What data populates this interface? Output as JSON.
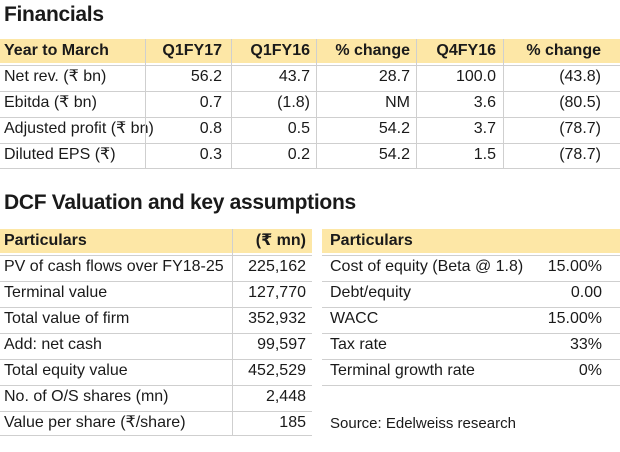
{
  "financials": {
    "title": "Financials",
    "headers": [
      "Year to March",
      "Q1FY17",
      "Q1FY16",
      "% change",
      "Q4FY16",
      "% change"
    ],
    "rows": [
      [
        "Net rev. (₹ bn)",
        "56.2",
        "43.7",
        "28.7",
        "100.0",
        "(43.8)"
      ],
      [
        "Ebitda (₹ bn)",
        "0.7",
        "(1.8)",
        "NM",
        "3.6",
        "(80.5)"
      ],
      [
        "Adjusted profit (₹ bn)",
        "0.8",
        "0.5",
        "54.2",
        "3.7",
        "(78.7)"
      ],
      [
        "Diluted EPS (₹)",
        "0.3",
        "0.2",
        "54.2",
        "1.5",
        "(78.7)"
      ]
    ]
  },
  "dcf": {
    "title": "DCF Valuation and key assumptions",
    "left_headers": [
      "Particulars",
      "(₹ mn)"
    ],
    "left_rows": [
      [
        "PV of cash flows over FY18-25",
        "225,162"
      ],
      [
        "Terminal value",
        "127,770"
      ],
      [
        "Total value of firm",
        "352,932"
      ],
      [
        "Add: net cash",
        "99,597"
      ],
      [
        "Total equity value",
        "452,529"
      ],
      [
        "No. of O/S shares (mn)",
        "2,448"
      ],
      [
        "Value per share (₹/share)",
        "185"
      ]
    ],
    "right_headers": [
      "Particulars",
      ""
    ],
    "right_rows": [
      [
        "Cost of equity (Beta @ 1.8)",
        "15.00%"
      ],
      [
        "Debt/equity",
        "0.00"
      ],
      [
        "WACC",
        "15.00%"
      ],
      [
        "Tax rate",
        "33%"
      ],
      [
        "Terminal growth rate",
        "0%"
      ]
    ],
    "source": "Source: Edelweiss research"
  }
}
